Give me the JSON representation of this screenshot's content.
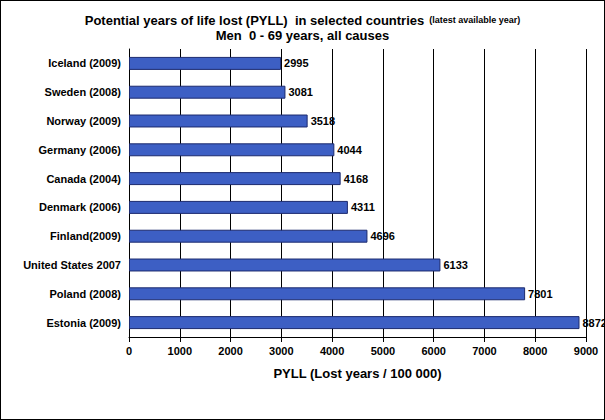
{
  "chart_data": {
    "type": "bar",
    "title": "Potential years of life lost (PYLL)  in selected countries",
    "annotations": [
      "(latest available year)"
    ],
    "subtitle": "Men  0 - 69 years, all causes",
    "x_label": "PYLL (Lost years / 100 000)",
    "categories": [
      "Iceland (2009)",
      "Sweden (2008)",
      "Norway (2009)",
      "Germany (2006)",
      "Canada (2004)",
      "Denmark (2006)",
      "Finland(2009)",
      "United States 2007",
      "Poland (2008)",
      "Estonia (2009)"
    ],
    "values": [
      2995,
      3081,
      3518,
      4044,
      4168,
      4311,
      4696,
      6133,
      7801,
      8872
    ],
    "color": "#3d5fc4",
    "orientation": "horizontal",
    "xlim": [
      0,
      9000
    ],
    "xticks": [
      0,
      1000,
      2000,
      3000,
      4000,
      5000,
      6000,
      7000,
      8000,
      9000
    ],
    "grid": true,
    "data_labels": true
  }
}
